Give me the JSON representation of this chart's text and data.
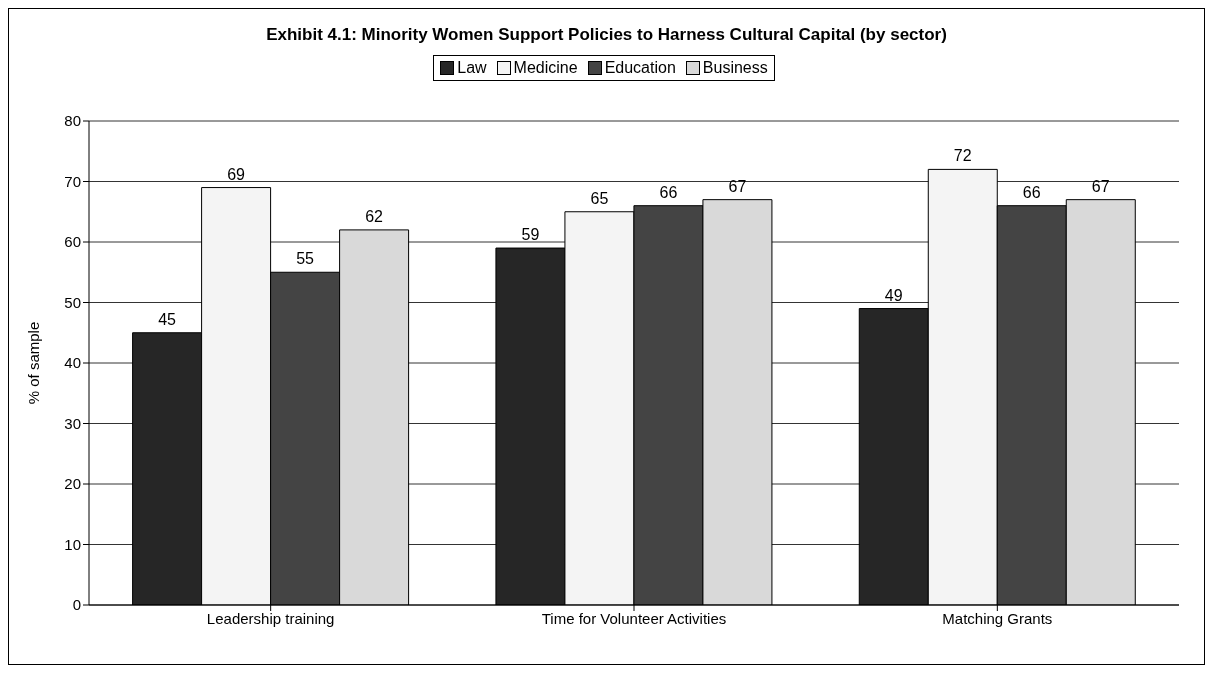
{
  "chart_data": {
    "type": "bar",
    "title": "Exhibit 4.1: Minority Women Support Policies to Harness Cultural Capital (by sector)",
    "ylabel": "% of sample",
    "categories": [
      "Leadership training",
      "Time for Volunteer Activities",
      "Matching Grants"
    ],
    "series": [
      {
        "name": "Law",
        "color": "#262626",
        "values": [
          45,
          59,
          49
        ]
      },
      {
        "name": "Medicine",
        "color": "#f4f4f4",
        "values": [
          69,
          65,
          72
        ]
      },
      {
        "name": "Education",
        "color": "#444444",
        "values": [
          55,
          66,
          66
        ]
      },
      {
        "name": "Business",
        "color": "#d9d9d9",
        "values": [
          62,
          67,
          67
        ]
      }
    ],
    "ylim": [
      0,
      80
    ],
    "yticks": [
      0,
      10,
      20,
      30,
      40,
      50,
      60,
      70,
      80
    ],
    "grid": "y",
    "legend": "top",
    "data_labels": true
  }
}
